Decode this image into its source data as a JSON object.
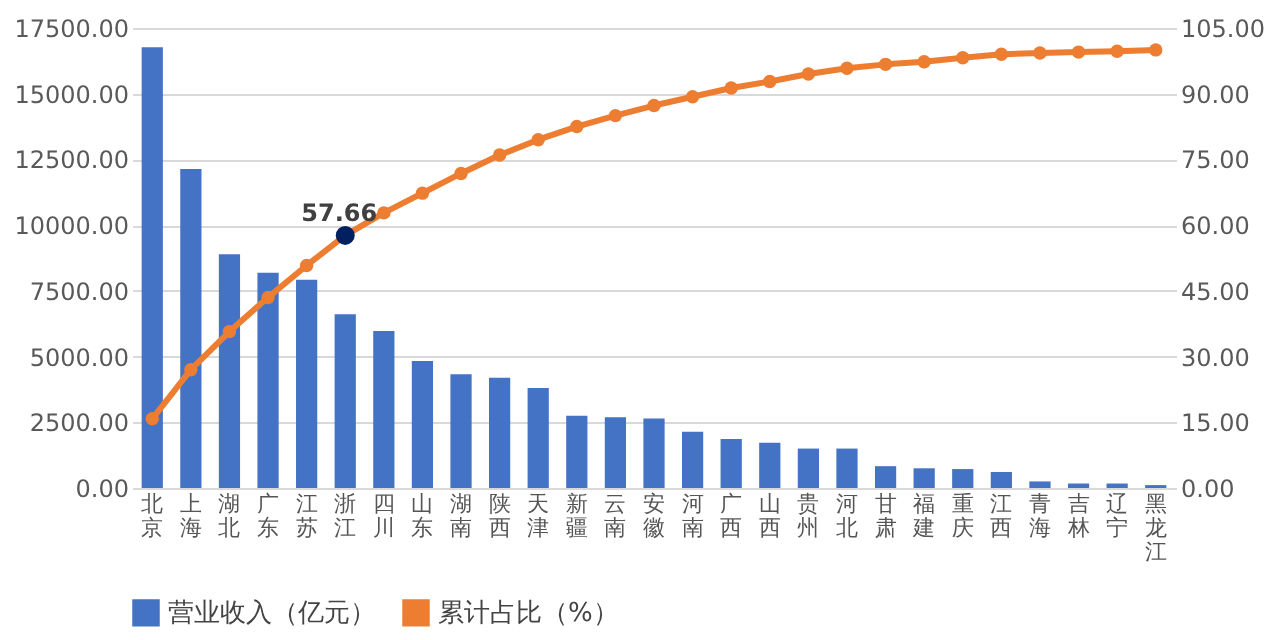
{
  "chart_data": {
    "type": "bar",
    "categories": [
      "北京",
      "上海",
      "湖北",
      "广东",
      "江苏",
      "浙江",
      "四川",
      "山东",
      "湖南",
      "陕西",
      "天津",
      "新疆",
      "云南",
      "安徽",
      "河南",
      "广西",
      "山西",
      "贵州",
      "河北",
      "甘肃",
      "福建",
      "重庆",
      "江西",
      "青海",
      "吉林",
      "辽宁",
      "黑龙江"
    ],
    "series": [
      {
        "name": "营业收入（亿元）",
        "color": "#4472c4",
        "values": [
          16770,
          12140,
          8890,
          8190,
          7920,
          6610,
          5970,
          4830,
          4330,
          4190,
          3800,
          2750,
          2690,
          2640,
          2140,
          1860,
          1720,
          1500,
          1500,
          830,
          750,
          720,
          610,
          250,
          170,
          170,
          110
        ]
      },
      {
        "name": "累计占比（%）",
        "type": "line",
        "axis": "y2",
        "color": "#ed7d31",
        "marker": "circle",
        "values": [
          15.8,
          27,
          35.7,
          43.5,
          50.8,
          57.66,
          62.8,
          67.3,
          71.8,
          76,
          79.5,
          82.5,
          85,
          87.3,
          89.3,
          91.3,
          92.8,
          94.5,
          95.8,
          96.7,
          97.3,
          98.2,
          99,
          99.3,
          99.5,
          99.7,
          100
        ]
      },
      {
        "type": "scatter",
        "axis": "y2",
        "color": "#002060",
        "marker": "circle",
        "values": [
          null,
          null,
          null,
          null,
          null,
          57.66,
          null,
          null,
          null,
          null,
          null,
          null,
          null,
          null,
          null,
          null,
          null,
          null,
          null,
          null,
          null,
          null,
          null,
          null,
          null,
          null,
          null
        ],
        "value_labels": [
          null,
          null,
          null,
          null,
          null,
          "57.66",
          null,
          null,
          null,
          null,
          null,
          null,
          null,
          null,
          null,
          null,
          null,
          null,
          null,
          null,
          null,
          null,
          null,
          null,
          null,
          null,
          null
        ]
      }
    ],
    "ylim": [
      0,
      17500
    ],
    "yticks": [
      {
        "value": 0,
        "label": "0.00"
      },
      {
        "value": 2500,
        "label": "2500.00"
      },
      {
        "value": 5000,
        "label": "5000.00"
      },
      {
        "value": 7500,
        "label": "7500.00"
      },
      {
        "value": 10000,
        "label": "10000.00"
      },
      {
        "value": 12500,
        "label": "12500.00"
      },
      {
        "value": 15000,
        "label": "15000.00"
      },
      {
        "value": 17500,
        "label": "17500.00"
      }
    ],
    "y2lim": [
      0,
      105
    ],
    "y2ticks": [
      {
        "value": 0,
        "label": "0.00"
      },
      {
        "value": 15,
        "label": "15.00"
      },
      {
        "value": 30,
        "label": "30.00"
      },
      {
        "value": 45,
        "label": "45.00"
      },
      {
        "value": 60,
        "label": "60.00"
      },
      {
        "value": 75,
        "label": "75.00"
      },
      {
        "value": 90,
        "label": "90.00"
      },
      {
        "value": 105,
        "label": "105.00"
      }
    ],
    "grid": "y",
    "legend": "bottom"
  }
}
